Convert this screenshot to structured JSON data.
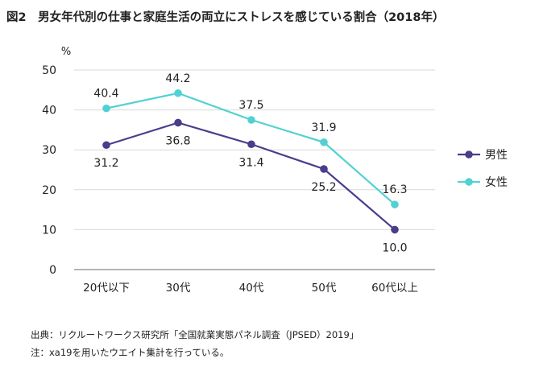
{
  "title": "図2　男女年代別の仕事と家庭生活の両立にストレスを感じている割合（2018年）",
  "source": "出典：リクルートワークス研究所「全国就業実態パネル調査（JPSED）2019」",
  "note": "注：xa19を用いたウエイト集計を行っている。",
  "chart_data": {
    "type": "line",
    "categories": [
      "20代以下",
      "30代",
      "40代",
      "50代",
      "60代以上"
    ],
    "ylabel": "%",
    "ylim": [
      0,
      50
    ],
    "yticks": [
      0,
      10,
      20,
      30,
      40,
      50
    ],
    "grid": true,
    "legend_position": "right",
    "series": [
      {
        "name": "男性",
        "color": "#4b3c8c",
        "values": [
          31.2,
          36.8,
          31.4,
          25.2,
          10.0
        ],
        "labels": [
          "31.2",
          "36.8",
          "31.4",
          "25.2",
          "10.0"
        ]
      },
      {
        "name": "女性",
        "color": "#52d1d3",
        "values": [
          40.4,
          44.2,
          37.5,
          31.9,
          16.3
        ],
        "labels": [
          "40.4",
          "44.2",
          "37.5",
          "31.9",
          "16.3"
        ]
      }
    ]
  }
}
